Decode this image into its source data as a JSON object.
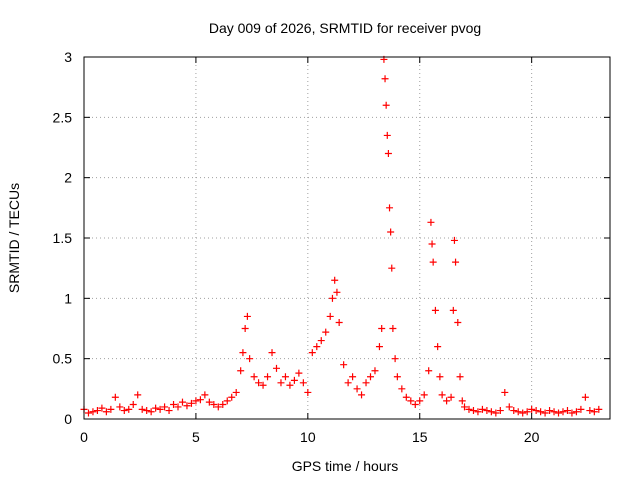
{
  "chart_data": {
    "type": "scatter",
    "title": "Day 009 of 2026, SRMTID for receiver pvog",
    "xlabel": "GPS time / hours",
    "ylabel": "SRMTID / TECUs",
    "xlim": [
      0,
      23.5
    ],
    "ylim": [
      0,
      3
    ],
    "xticks": [
      0,
      5,
      10,
      15,
      20
    ],
    "yticks": [
      0,
      0.5,
      1,
      1.5,
      2,
      2.5,
      3
    ],
    "xtick_labels": [
      "0",
      "5",
      "10",
      "15",
      "20"
    ],
    "ytick_labels": [
      "0",
      "0.5",
      "1",
      "1.5",
      "2",
      "2.5",
      "3"
    ],
    "grid": true,
    "legend": "none",
    "marker": "+",
    "series": [
      {
        "name": "pvog",
        "color": "#ff0000",
        "x": [
          0.0,
          0.2,
          0.4,
          0.6,
          0.8,
          1.0,
          1.2,
          1.4,
          1.6,
          1.8,
          2.0,
          2.2,
          2.4,
          2.6,
          2.8,
          3.0,
          3.2,
          3.4,
          3.6,
          3.8,
          4.0,
          4.2,
          4.4,
          4.6,
          4.8,
          5.0,
          5.2,
          5.4,
          5.6,
          5.8,
          6.0,
          6.2,
          6.4,
          6.6,
          6.8,
          7.0,
          7.1,
          7.2,
          7.3,
          7.4,
          7.6,
          7.8,
          8.0,
          8.2,
          8.4,
          8.6,
          8.8,
          9.0,
          9.2,
          9.4,
          9.6,
          9.8,
          10.0,
          10.2,
          10.4,
          10.6,
          10.8,
          11.0,
          11.1,
          11.2,
          11.3,
          11.4,
          11.6,
          11.8,
          12.0,
          12.2,
          12.4,
          12.6,
          12.8,
          13.0,
          13.2,
          13.3,
          13.4,
          13.45,
          13.5,
          13.55,
          13.6,
          13.65,
          13.7,
          13.75,
          13.8,
          13.9,
          14.0,
          14.2,
          14.4,
          14.6,
          14.8,
          15.0,
          15.2,
          15.4,
          15.5,
          15.55,
          15.6,
          15.7,
          15.8,
          15.9,
          16.0,
          16.2,
          16.4,
          16.5,
          16.55,
          16.6,
          16.7,
          16.8,
          16.9,
          17.0,
          17.2,
          17.4,
          17.6,
          17.8,
          18.0,
          18.2,
          18.4,
          18.6,
          18.8,
          19.0,
          19.2,
          19.4,
          19.6,
          19.8,
          20.0,
          20.2,
          20.4,
          20.6,
          20.8,
          21.0,
          21.2,
          21.4,
          21.6,
          21.8,
          22.0,
          22.2,
          22.4,
          22.6,
          22.8,
          23.0
        ],
        "y": [
          0.08,
          0.05,
          0.06,
          0.07,
          0.09,
          0.06,
          0.08,
          0.18,
          0.1,
          0.07,
          0.08,
          0.12,
          0.2,
          0.08,
          0.07,
          0.06,
          0.09,
          0.08,
          0.1,
          0.07,
          0.12,
          0.1,
          0.14,
          0.11,
          0.13,
          0.15,
          0.16,
          0.2,
          0.14,
          0.12,
          0.1,
          0.12,
          0.15,
          0.18,
          0.22,
          0.4,
          0.55,
          0.75,
          0.85,
          0.5,
          0.35,
          0.3,
          0.28,
          0.35,
          0.55,
          0.42,
          0.3,
          0.35,
          0.28,
          0.32,
          0.38,
          0.3,
          0.22,
          0.55,
          0.6,
          0.65,
          0.72,
          0.85,
          1.0,
          1.15,
          1.05,
          0.8,
          0.45,
          0.3,
          0.35,
          0.25,
          0.2,
          0.3,
          0.35,
          0.4,
          0.6,
          0.75,
          2.98,
          2.82,
          2.6,
          2.35,
          2.2,
          1.75,
          1.55,
          1.25,
          0.75,
          0.5,
          0.35,
          0.25,
          0.18,
          0.15,
          0.12,
          0.15,
          0.2,
          0.4,
          1.63,
          1.45,
          1.3,
          0.9,
          0.6,
          0.35,
          0.2,
          0.15,
          0.18,
          0.9,
          1.48,
          1.3,
          0.8,
          0.35,
          0.15,
          0.1,
          0.08,
          0.07,
          0.06,
          0.08,
          0.07,
          0.06,
          0.05,
          0.07,
          0.22,
          0.1,
          0.07,
          0.06,
          0.05,
          0.06,
          0.08,
          0.07,
          0.06,
          0.05,
          0.07,
          0.06,
          0.05,
          0.06,
          0.07,
          0.05,
          0.06,
          0.08,
          0.18,
          0.07,
          0.06,
          0.08
        ]
      }
    ]
  }
}
